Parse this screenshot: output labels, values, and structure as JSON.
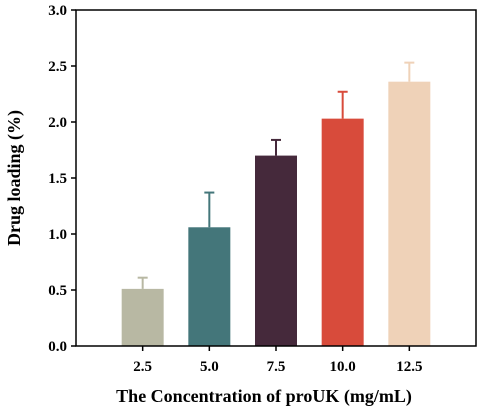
{
  "chart_data": {
    "type": "bar",
    "xlabel": "The Concentration of proUK (mg/mL)",
    "ylabel": "Drug loading (%)",
    "categories": [
      "2.5",
      "5.0",
      "7.5",
      "10.0",
      "12.5"
    ],
    "values": [
      0.51,
      1.06,
      1.7,
      2.03,
      2.36
    ],
    "error_bars": [
      0.1,
      0.31,
      0.14,
      0.24,
      0.17
    ],
    "colors": [
      "#b8b8a3",
      "#44767a",
      "#45293b",
      "#d84b3b",
      "#efd2b8"
    ],
    "ylim": [
      0.0,
      3.0
    ],
    "yticks": [
      "0.0",
      "0.5",
      "1.0",
      "1.5",
      "2.0",
      "2.5",
      "3.0"
    ],
    "grid": false,
    "legend": false
  }
}
